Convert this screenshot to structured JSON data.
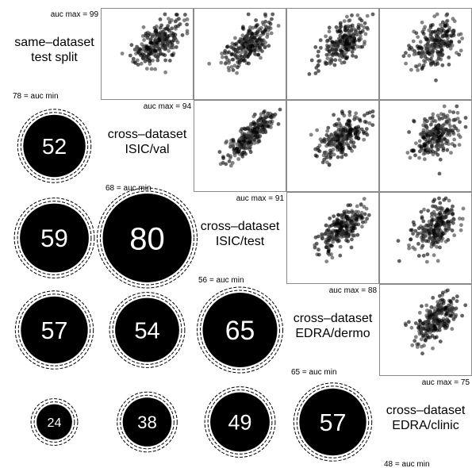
{
  "chart_data": {
    "type": "scatter",
    "variables": [
      {
        "name": "same-dataset test split",
        "label_lines": [
          "same–dataset",
          "test split"
        ],
        "auc_max_text": "auc max = 99",
        "auc_min_text": "78 = auc min",
        "max": 99,
        "min": 78
      },
      {
        "name": "cross-dataset ISIC/val",
        "label_lines": [
          "cross–dataset",
          "ISIC/val"
        ],
        "auc_max_text": "auc max = 94",
        "auc_min_text": "68 = auc min",
        "max": 94,
        "min": 68
      },
      {
        "name": "cross-dataset ISIC/test",
        "label_lines": [
          "cross–dataset",
          "ISIC/test"
        ],
        "auc_max_text": "auc max = 91",
        "auc_min_text": "56 = auc min",
        "max": 91,
        "min": 56
      },
      {
        "name": "cross-dataset EDRA/dermo",
        "label_lines": [
          "cross–dataset",
          "EDRA/dermo"
        ],
        "auc_max_text": "auc max = 88",
        "auc_min_text": "65 = auc min",
        "max": 88,
        "min": 65
      },
      {
        "name": "cross-dataset EDRA/clinic",
        "label_lines": [
          "cross–dataset",
          "EDRA/clinic"
        ],
        "auc_max_text": "auc max = 75",
        "auc_min_text": "48 = auc min",
        "max": 75,
        "min": 48
      }
    ],
    "correlations": [
      {
        "row": 1,
        "col": 0,
        "value": 52
      },
      {
        "row": 2,
        "col": 0,
        "value": 59
      },
      {
        "row": 2,
        "col": 1,
        "value": 80
      },
      {
        "row": 3,
        "col": 0,
        "value": 57
      },
      {
        "row": 3,
        "col": 1,
        "value": 54
      },
      {
        "row": 3,
        "col": 2,
        "value": 65
      },
      {
        "row": 4,
        "col": 0,
        "value": 24
      },
      {
        "row": 4,
        "col": 1,
        "value": 38
      },
      {
        "row": 4,
        "col": 2,
        "value": 49
      },
      {
        "row": 4,
        "col": 3,
        "value": 57
      }
    ],
    "grid": false,
    "point_color": "#000000",
    "circle_color": "#000000"
  }
}
